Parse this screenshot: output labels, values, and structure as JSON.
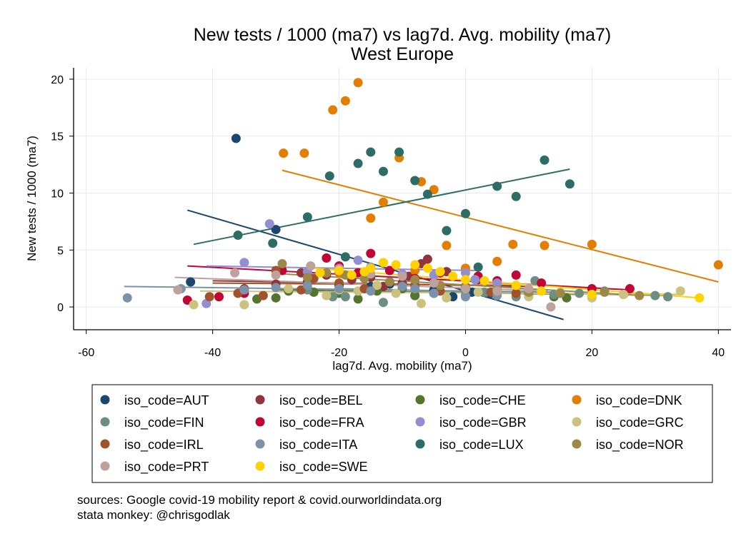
{
  "chart_data": {
    "type": "scatter",
    "title": "New tests / 1000 (ma7) vs lag7d. Avg. mobility (ma7)",
    "subtitle": "West Europe",
    "xlabel": "lag7d. Avg. mobility (ma7)",
    "ylabel": "New tests / 1000 (ma7)",
    "xlim": [
      -62,
      42
    ],
    "ylim": [
      -2,
      21
    ],
    "xticks": [
      -60,
      -40,
      -20,
      0,
      20,
      40
    ],
    "yticks": [
      0,
      5,
      10,
      15,
      20
    ],
    "grid": true,
    "legend_position": "bottom",
    "series": [
      {
        "name": "iso_code=AUT",
        "color": "#1a476f",
        "points": [
          [
            -36.3,
            14.8
          ],
          [
            -30,
            6.8
          ],
          [
            -43.5,
            2.2
          ],
          [
            -8,
            1.0
          ],
          [
            -5,
            1.5
          ],
          [
            -2,
            0.9
          ],
          [
            1,
            1.3
          ],
          [
            -12,
            2.0
          ],
          [
            -20,
            1.9
          ],
          [
            4,
            1.2
          ],
          [
            -15,
            1.8
          ],
          [
            -25,
            1.6
          ]
        ],
        "fit": [
          [
            -44,
            8.5
          ],
          [
            15.5,
            -1.1
          ]
        ]
      },
      {
        "name": "iso_code=BEL",
        "color": "#90353b",
        "points": [
          [
            -6,
            4.2
          ],
          [
            -7,
            3.8
          ],
          [
            -15,
            2.6
          ],
          [
            -18,
            2.4
          ],
          [
            -22,
            2.8
          ],
          [
            -3,
            3.1
          ],
          [
            -10,
            2.1
          ],
          [
            -13,
            1.8
          ],
          [
            -25,
            2.2
          ],
          [
            -30,
            2.0
          ],
          [
            -35,
            1.6
          ],
          [
            2,
            2.4
          ],
          [
            -26,
            3.0
          ],
          [
            -9,
            2.7
          ]
        ],
        "fit": [
          [
            -40,
            2.3
          ],
          [
            10,
            1.8
          ]
        ]
      },
      {
        "name": "iso_code=CHE",
        "color": "#55752f",
        "points": [
          [
            -33,
            0.7
          ],
          [
            -30,
            0.8
          ],
          [
            -24,
            1.3
          ],
          [
            -20,
            1.2
          ],
          [
            -17,
            0.7
          ],
          [
            -14,
            1.4
          ],
          [
            -10,
            1.6
          ],
          [
            -5,
            1.2
          ],
          [
            0,
            1.5
          ],
          [
            5,
            1.4
          ],
          [
            10,
            1.1
          ],
          [
            14,
            0.9
          ],
          [
            16,
            0.8
          ],
          [
            -28,
            1.4
          ],
          [
            -8,
            1.0
          ]
        ],
        "fit": [
          [
            -30,
            1.5
          ],
          [
            18,
            1.1
          ]
        ]
      },
      {
        "name": "iso_code=DNK",
        "color": "#e37e00",
        "points": [
          [
            -17,
            19.7
          ],
          [
            -19,
            18.1
          ],
          [
            -21,
            17.3
          ],
          [
            -28.8,
            13.5
          ],
          [
            -25.5,
            13.5
          ],
          [
            -10.5,
            13.1
          ],
          [
            -15,
            7.8
          ],
          [
            -13,
            9.2
          ],
          [
            -5,
            10.3
          ],
          [
            -7,
            11.0
          ],
          [
            -3,
            5.4
          ],
          [
            5,
            4.0
          ],
          [
            7.5,
            5.5
          ],
          [
            12.5,
            5.4
          ],
          [
            20,
            5.5
          ],
          [
            40,
            3.7
          ],
          [
            0,
            3.4
          ],
          [
            -8,
            3.2
          ],
          [
            -20,
            3.0
          ]
        ],
        "fit": [
          [
            -29,
            12.0
          ],
          [
            40,
            2.2
          ]
        ]
      },
      {
        "name": "iso_code=FIN",
        "color": "#6e8e84",
        "points": [
          [
            -21,
            0.9
          ],
          [
            -19,
            0.9
          ],
          [
            -13,
            0.4
          ],
          [
            -5,
            1.2
          ],
          [
            0,
            1.0
          ],
          [
            3,
            1.3
          ],
          [
            8,
            0.9
          ],
          [
            11,
            2.3
          ],
          [
            14,
            1.1
          ],
          [
            18,
            1.2
          ],
          [
            22,
            1.4
          ],
          [
            25,
            1.1
          ],
          [
            30,
            1.0
          ],
          [
            32,
            0.9
          ],
          [
            -10,
            1.8
          ],
          [
            -25,
            1.5
          ]
        ],
        "fit": [
          [
            -20,
            1.6
          ],
          [
            32,
            1.0
          ]
        ]
      },
      {
        "name": "iso_code=FRA",
        "color": "#c10534",
        "points": [
          [
            -44,
            0.6
          ],
          [
            -39,
            0.9
          ],
          [
            -35,
            1.2
          ],
          [
            -29,
            3.2
          ],
          [
            -22,
            4.3
          ],
          [
            -20,
            3.6
          ],
          [
            -15,
            4.7
          ],
          [
            -12,
            3.2
          ],
          [
            -8,
            2.5
          ],
          [
            -4,
            3.0
          ],
          [
            2,
            2.7
          ],
          [
            5,
            2.3
          ],
          [
            8,
            2.8
          ],
          [
            12,
            2.1
          ],
          [
            20,
            1.6
          ],
          [
            26,
            1.6
          ],
          [
            -25,
            2.8
          ],
          [
            -17,
            3.0
          ]
        ],
        "fit": [
          [
            -44,
            3.6
          ],
          [
            26,
            1.5
          ]
        ]
      },
      {
        "name": "iso_code=GBR",
        "color": "#938dd2",
        "points": [
          [
            -31,
            7.3
          ],
          [
            -35,
            3.9
          ],
          [
            -41,
            0.3
          ],
          [
            -17,
            4.1
          ],
          [
            -15,
            3.5
          ],
          [
            -5,
            2.8
          ],
          [
            0,
            3.0
          ],
          [
            1.5,
            2.4
          ],
          [
            -10,
            2.9
          ],
          [
            -20,
            3.4
          ],
          [
            -25,
            3.1
          ],
          [
            5,
            2.1
          ]
        ],
        "fit": [
          [
            -41,
            3.6
          ],
          [
            2,
            3.2
          ]
        ]
      },
      {
        "name": "iso_code=GRC",
        "color": "#cac27e",
        "points": [
          [
            -43,
            0.2
          ],
          [
            -35,
            0.2
          ],
          [
            -22,
            1.0
          ],
          [
            -20,
            1.5
          ],
          [
            -14,
            1.9
          ],
          [
            -11,
            1.2
          ],
          [
            -7,
            0.3
          ],
          [
            -3,
            0.8
          ],
          [
            2,
            1.3
          ],
          [
            5,
            1.0
          ],
          [
            10,
            0.9
          ],
          [
            15,
            1.3
          ],
          [
            20,
            0.8
          ],
          [
            25,
            1.1
          ],
          [
            34,
            1.4
          ],
          [
            -28,
            1.6
          ],
          [
            -17,
            1.4
          ]
        ],
        "fit": [
          [
            -42,
            1.4
          ],
          [
            34,
            1.1
          ]
        ]
      },
      {
        "name": "iso_code=IRL",
        "color": "#a0522d",
        "points": [
          [
            -40.5,
            0.9
          ],
          [
            -36,
            1.2
          ],
          [
            -32,
            1.0
          ],
          [
            -30,
            3.2
          ],
          [
            -24,
            2.5
          ],
          [
            -20,
            2.1
          ],
          [
            -16,
            1.6
          ],
          [
            -12,
            2.2
          ],
          [
            -8,
            1.9
          ],
          [
            -4,
            1.4
          ],
          [
            0,
            1.8
          ],
          [
            4,
            1.3
          ],
          [
            8,
            1.2
          ],
          [
            -26,
            1.5
          ]
        ],
        "fit": [
          [
            -40,
            2.1
          ],
          [
            8,
            1.9
          ]
        ]
      },
      {
        "name": "iso_code=ITA",
        "color": "#7b92a8",
        "points": [
          [
            -53.5,
            0.8
          ],
          [
            -45,
            1.6
          ],
          [
            -35,
            1.5
          ],
          [
            -25,
            1.9
          ],
          [
            -20,
            1.6
          ],
          [
            -15,
            1.4
          ],
          [
            -10,
            1.8
          ],
          [
            -5,
            1.2
          ],
          [
            0,
            0.9
          ],
          [
            5,
            1.0
          ],
          [
            10,
            1.5
          ],
          [
            15,
            1.2
          ],
          [
            -30,
            1.7
          ],
          [
            -8,
            1.6
          ]
        ],
        "fit": [
          [
            -54,
            1.8
          ],
          [
            15,
            1.3
          ]
        ]
      },
      {
        "name": "iso_code=LUX",
        "color": "#2d6d66",
        "points": [
          [
            -36,
            6.3
          ],
          [
            -30.5,
            5.6
          ],
          [
            -25,
            7.9
          ],
          [
            -21.5,
            11.5
          ],
          [
            -19,
            4.4
          ],
          [
            -17,
            12.6
          ],
          [
            -15,
            13.6
          ],
          [
            -13,
            11.9
          ],
          [
            -10.5,
            13.6
          ],
          [
            -8,
            11.1
          ],
          [
            -6,
            9.9
          ],
          [
            -3,
            6.7
          ],
          [
            0,
            8.2
          ],
          [
            2,
            3.5
          ],
          [
            5,
            10.6
          ],
          [
            8,
            9.7
          ],
          [
            12.5,
            12.9
          ],
          [
            16.5,
            10.8
          ]
        ],
        "fit": [
          [
            -43,
            5.5
          ],
          [
            16.5,
            12.1
          ]
        ]
      },
      {
        "name": "iso_code=NOR",
        "color": "#9c8847",
        "points": [
          [
            -29,
            3.8
          ],
          [
            -22,
            3.0
          ],
          [
            -19,
            2.8
          ],
          [
            -16,
            2.5
          ],
          [
            -12,
            2.2
          ],
          [
            -8,
            2.4
          ],
          [
            -4,
            1.9
          ],
          [
            0,
            1.7
          ],
          [
            5,
            1.5
          ],
          [
            10,
            1.3
          ],
          [
            15,
            1.2
          ],
          [
            20,
            1.1
          ],
          [
            27.5,
            1.0
          ],
          [
            22,
            1.3
          ],
          [
            -25,
            2.6
          ]
        ],
        "fit": [
          [
            -29,
            2.9
          ],
          [
            28,
            1.0
          ]
        ]
      },
      {
        "name": "iso_code=PRT",
        "color": "#bfa19c",
        "points": [
          [
            -45.5,
            1.5
          ],
          [
            -36.5,
            3.0
          ],
          [
            -24.5,
            3.6
          ],
          [
            -20,
            3.3
          ],
          [
            -15,
            2.9
          ],
          [
            -10,
            2.7
          ],
          [
            -5,
            2.1
          ],
          [
            0,
            1.6
          ],
          [
            5,
            1.4
          ],
          [
            10,
            1.6
          ],
          [
            13.5,
            0.0
          ],
          [
            -30,
            2.8
          ]
        ],
        "fit": [
          [
            -46,
            2.6
          ],
          [
            13,
            1.4
          ]
        ]
      },
      {
        "name": "iso_code=SWE",
        "color": "#ffd200",
        "points": [
          [
            -23,
            3.0
          ],
          [
            -20,
            3.2
          ],
          [
            -18,
            2.8
          ],
          [
            -15,
            3.4
          ],
          [
            -13,
            3.9
          ],
          [
            -11,
            3.7
          ],
          [
            -8,
            3.7
          ],
          [
            -6,
            3.4
          ],
          [
            -4,
            3.1
          ],
          [
            -2,
            2.7
          ],
          [
            0,
            2.4
          ],
          [
            3,
            2.3
          ],
          [
            8,
            1.9
          ],
          [
            12,
            1.4
          ],
          [
            20,
            1.1
          ],
          [
            37,
            0.8
          ],
          [
            -16,
            3.1
          ]
        ],
        "fit": [
          [
            -24,
            3.4
          ],
          [
            37,
            0.8
          ]
        ]
      }
    ],
    "notes": [
      "sources: Google covid-19 mobility report & covid.ourworldindata.org",
      "stata monkey: @chrisgodlak"
    ]
  }
}
